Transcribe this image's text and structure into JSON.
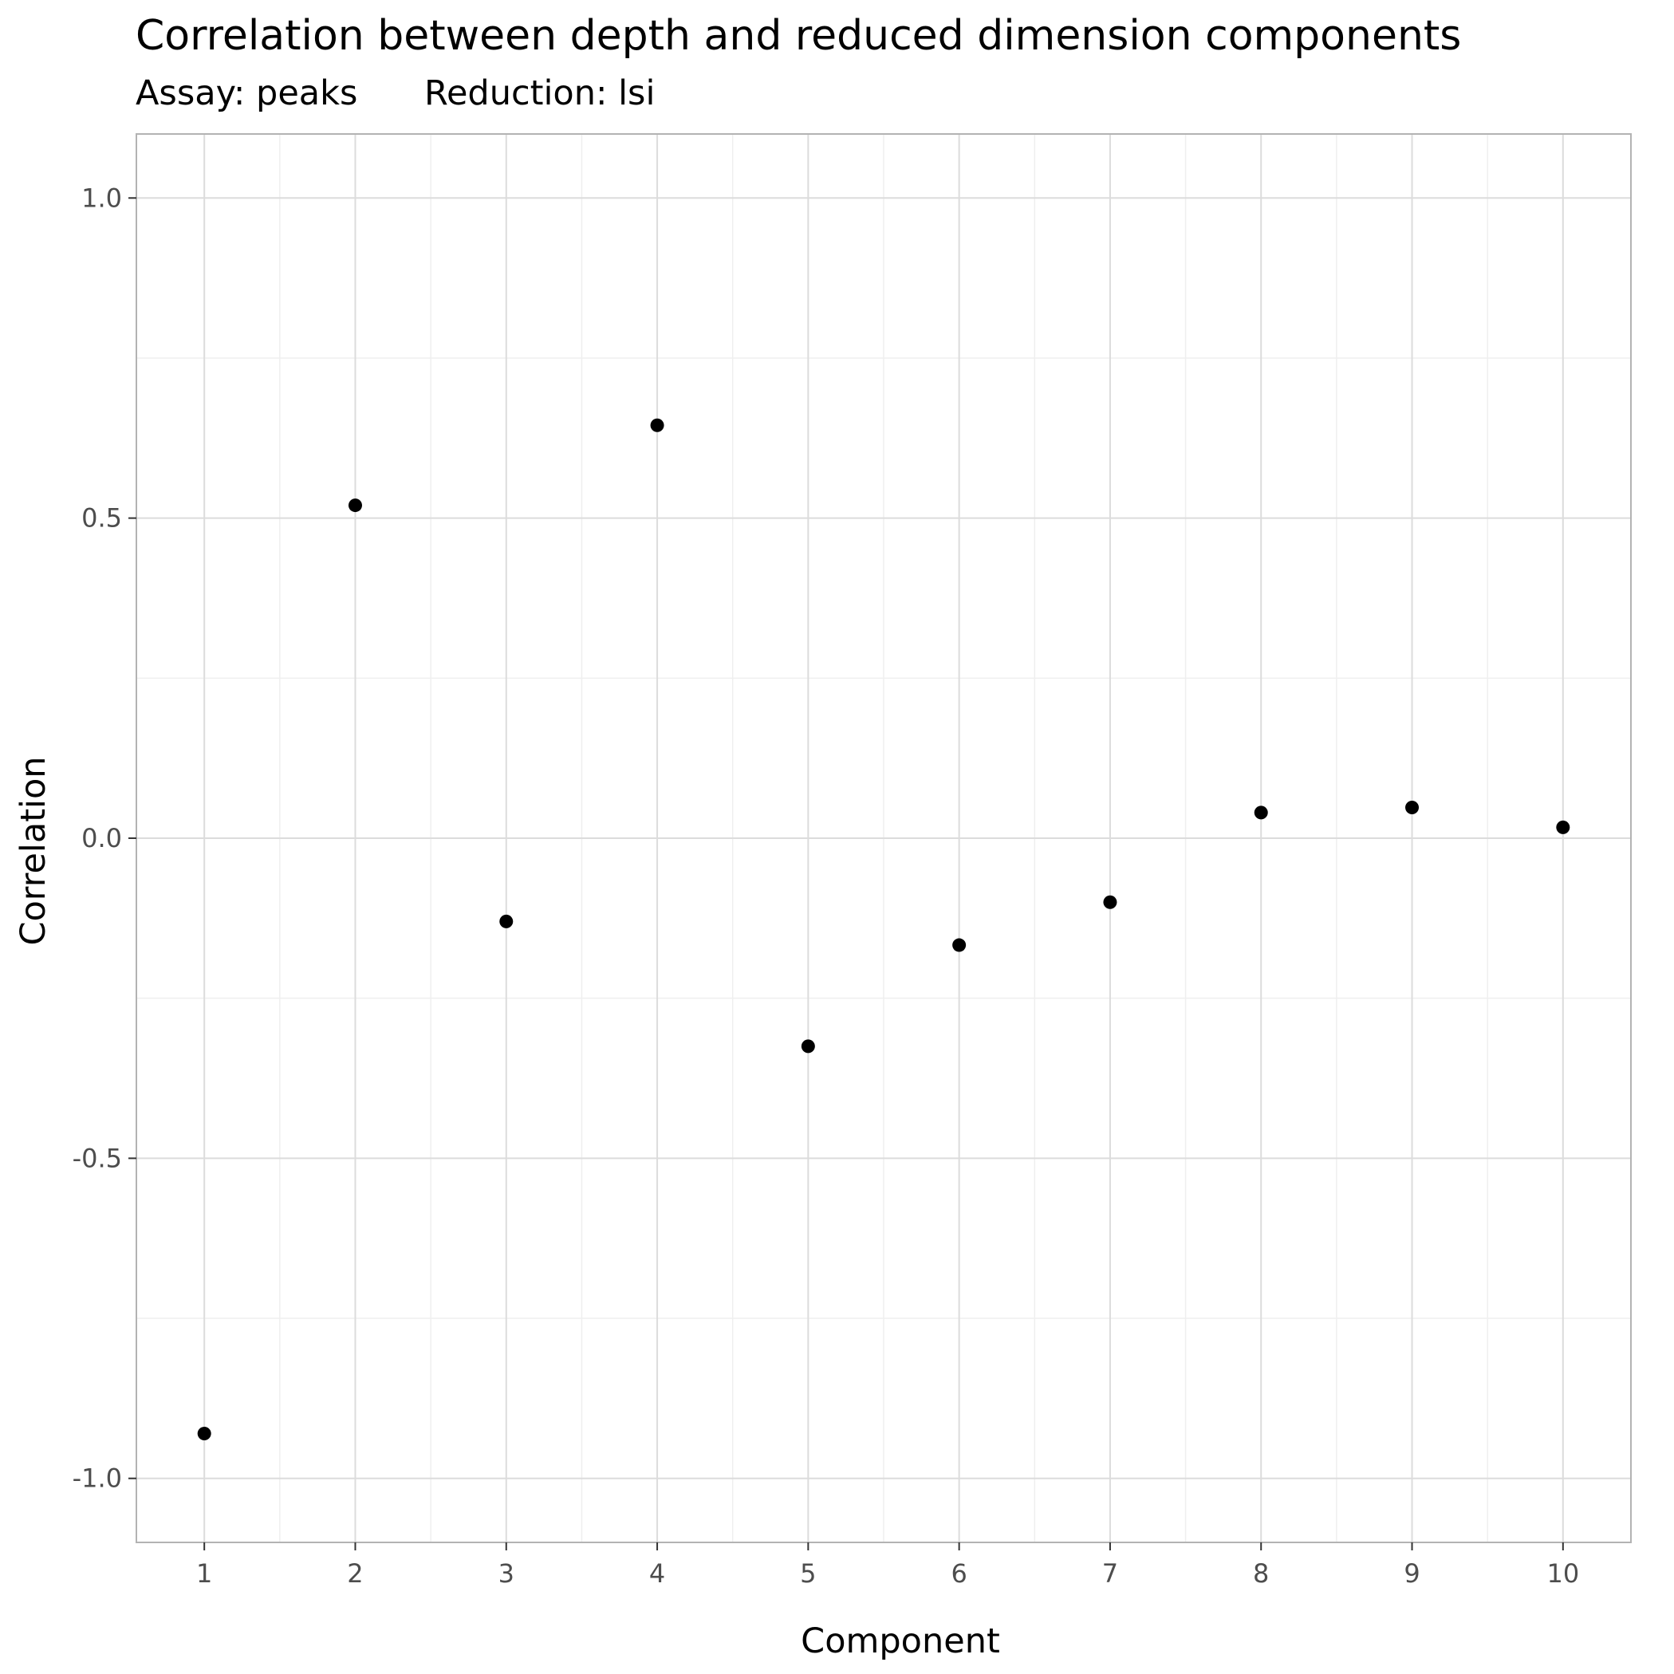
{
  "chart_data": {
    "type": "scatter",
    "title": "Correlation between depth and reduced dimension components",
    "subtitle_assay": "Assay: peaks",
    "subtitle_reduction": "Reduction: lsi",
    "xlabel": "Component",
    "ylabel": "Correlation",
    "x": [
      1,
      2,
      3,
      4,
      5,
      6,
      7,
      8,
      9,
      10
    ],
    "y": [
      -0.93,
      0.52,
      -0.13,
      0.645,
      -0.325,
      -0.167,
      -0.1,
      0.04,
      0.048,
      0.017
    ],
    "xlim": [
      0.55,
      10.45
    ],
    "ylim": [
      -1.1,
      1.1
    ],
    "x_ticks": [
      1,
      2,
      3,
      4,
      5,
      6,
      7,
      8,
      9,
      10
    ],
    "x_tick_labels": [
      "1",
      "2",
      "3",
      "4",
      "5",
      "6",
      "7",
      "8",
      "9",
      "10"
    ],
    "y_ticks": [
      -1.0,
      -0.5,
      0.0,
      0.5,
      1.0
    ],
    "y_tick_labels": [
      "-1.0",
      "-0.5",
      "0.0",
      "0.5",
      "1.0"
    ],
    "grid": true,
    "legend": "none",
    "colors": {
      "points": "#000000",
      "grid_major": "#dcdcdc",
      "grid_minor": "#efefef",
      "panel_border": "#b3b3b3",
      "tick_text": "#4d4d4d"
    }
  }
}
